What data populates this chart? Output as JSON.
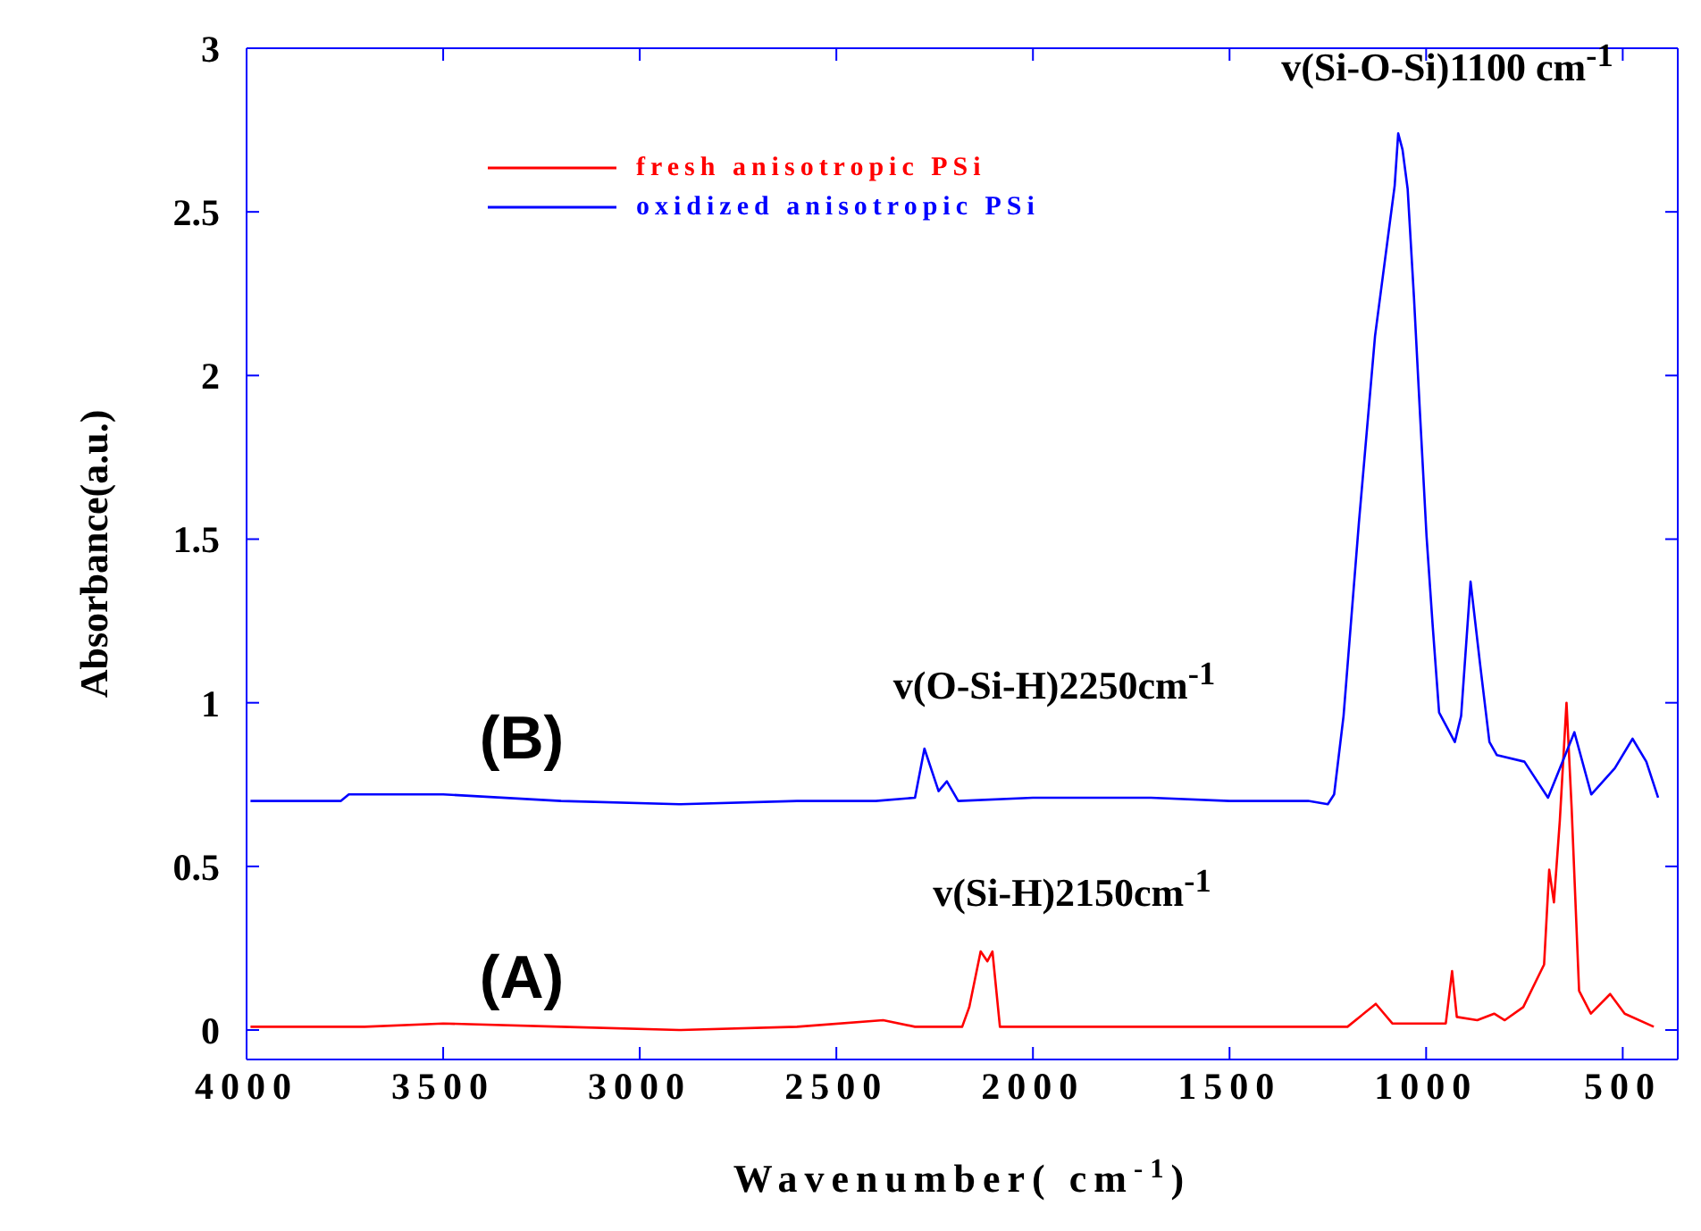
{
  "chart_data": {
    "type": "line",
    "xlabel": "Wavenumber( cm$^{-1}$)",
    "ylabel": "Absorbance(a.u.)",
    "xlim": [
      4000,
      360
    ],
    "xticks": [
      4000,
      3500,
      3000,
      2500,
      2000,
      1500,
      1000,
      500
    ],
    "ylim": [
      -0.09,
      3
    ],
    "yticks": [
      0,
      0.5,
      1,
      1.5,
      2,
      2.5,
      3
    ],
    "legend": "top left",
    "marker": "none",
    "line_style": "solid",
    "series": [
      {
        "name": "fresh anisotropic PSi",
        "color": "#ff0000",
        "x": [
          3990,
          3700,
          3500,
          3200,
          2900,
          2600,
          2381,
          2300,
          2180,
          2162,
          2133,
          2116,
          2103,
          2084,
          2000,
          1700,
          1400,
          1200,
          1128,
          1086,
          1000,
          950,
          934,
          922,
          870,
          827,
          800,
          753,
          700,
          687,
          675,
          660,
          643,
          630,
          611,
          581,
          532,
          495,
          421
        ],
        "values": [
          0.01,
          0.01,
          0.02,
          0.01,
          0.0,
          0.01,
          0.03,
          0.01,
          0.01,
          0.07,
          0.24,
          0.21,
          0.24,
          0.01,
          0.01,
          0.01,
          0.01,
          0.01,
          0.08,
          0.02,
          0.02,
          0.02,
          0.18,
          0.04,
          0.03,
          0.05,
          0.03,
          0.07,
          0.2,
          0.49,
          0.39,
          0.64,
          1.0,
          0.68,
          0.12,
          0.05,
          0.11,
          0.05,
          0.01
        ]
      },
      {
        "name": "oxidized anisotropic PSi",
        "color": "#0000ff",
        "x": [
          3990,
          3760,
          3740,
          3500,
          3200,
          2900,
          2600,
          2400,
          2300,
          2276,
          2240,
          2219,
          2190,
          2000,
          1700,
          1500,
          1300,
          1250,
          1234,
          1210,
          1171,
          1130,
          1080,
          1071,
          1060,
          1047,
          1031,
          1015,
          999,
          983,
          967,
          927,
          911,
          887,
          863,
          839,
          820,
          750,
          690,
          623,
          580,
          520,
          475,
          440,
          410
        ],
        "values": [
          0.7,
          0.7,
          0.72,
          0.72,
          0.7,
          0.69,
          0.7,
          0.7,
          0.71,
          0.86,
          0.73,
          0.76,
          0.7,
          0.71,
          0.71,
          0.7,
          0.7,
          0.69,
          0.72,
          0.96,
          1.55,
          2.12,
          2.58,
          2.74,
          2.69,
          2.57,
          2.24,
          1.87,
          1.51,
          1.23,
          0.97,
          0.88,
          0.96,
          1.37,
          1.12,
          0.88,
          0.84,
          0.82,
          0.71,
          0.91,
          0.72,
          0.8,
          0.89,
          0.82,
          0.71
        ]
      }
    ],
    "annotations": [
      "v(Si-O-Si)1100 cm$^{-1}$",
      "v(O-Si-H)2250cm$^{-1}$",
      "v(Si-H)2150cm$^{-1}$",
      "(B)",
      "(A)"
    ]
  }
}
